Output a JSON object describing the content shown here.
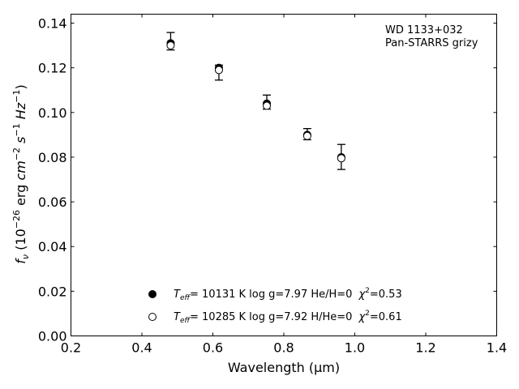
{
  "chart_data": {
    "type": "scatter",
    "xlabel": "Wavelength (μm)",
    "ylabel": "f_ν (10^-26 erg cm^-2 s^-1 Hz^-1)",
    "xlim": [
      0.2,
      1.4
    ],
    "ylim": [
      0.0,
      0.144
    ],
    "x_ticks": [
      "0.2",
      "0.4",
      "0.6",
      "0.8",
      "1.0",
      "1.2",
      "1.4"
    ],
    "y_ticks": [
      "0.00",
      "0.02",
      "0.04",
      "0.06",
      "0.08",
      "0.10",
      "0.12",
      "0.14"
    ],
    "annotation_lines": [
      "WD 1133+032",
      "Pan-STARRS grizy"
    ],
    "observed": {
      "x": [
        0.481,
        0.617,
        0.752,
        0.866,
        0.962
      ],
      "y": [
        0.1305,
        0.1195,
        0.1045,
        0.0902,
        0.08
      ],
      "err_low": [
        0.128,
        0.1145,
        0.1015,
        0.0878,
        0.0745
      ],
      "err_high": [
        0.1358,
        0.1212,
        0.1078,
        0.0928,
        0.0857
      ]
    },
    "series": [
      {
        "marker": "filled",
        "x": [
          0.481,
          0.617,
          0.752,
          0.866,
          0.962
        ],
        "y": [
          0.131,
          0.12,
          0.104,
          0.09,
          0.08
        ]
      },
      {
        "marker": "open",
        "x": [
          0.481,
          0.617,
          0.752,
          0.866,
          0.962
        ],
        "y": [
          0.13,
          0.119,
          0.103,
          0.0895,
          0.0795
        ]
      }
    ],
    "legend": [
      {
        "marker": "filled",
        "teff_symbol": "T",
        "teff_sub": "eff",
        "text": "= 10131 K  log g=7.97  He/H=0",
        "chi_symbol": "χ",
        "chi_sup": "2",
        "chi_text": "=0.53"
      },
      {
        "marker": "open",
        "teff_symbol": "T",
        "teff_sub": "eff",
        "text": "= 10285 K  log g=7.92  H/He=0",
        "chi_symbol": "χ",
        "chi_sup": "2",
        "chi_text": "=0.61"
      }
    ],
    "legend_position": "lower-left",
    "grid": false
  }
}
